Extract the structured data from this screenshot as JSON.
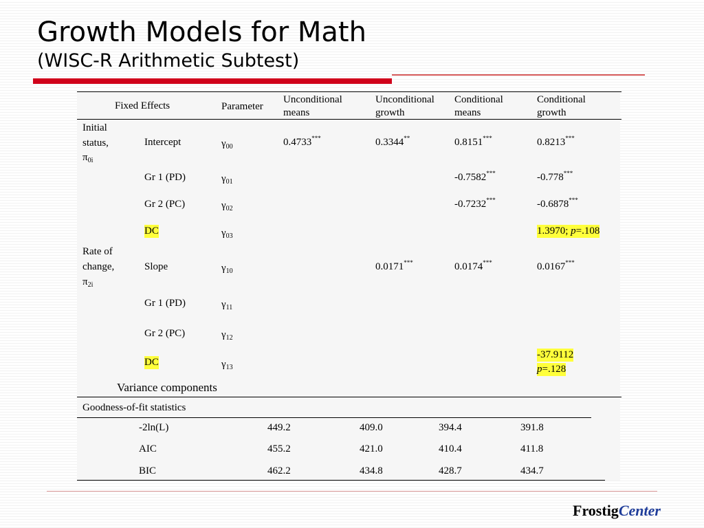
{
  "slide": {
    "title": "Growth Models for Math",
    "subtitle": "(WISC-R Arithmetic Subtest)",
    "brand_a": "Frostig",
    "brand_b": "Center",
    "accent_red": "#d0021b",
    "brand_blue": "#1f3d9a",
    "highlight_yellow": "#ffff3b"
  },
  "table": {
    "headers": {
      "fixed": "Fixed Effects",
      "param": "Parameter",
      "c1a": "Unconditional",
      "c1b": "means",
      "c2a": "Unconditional",
      "c2b": "growth",
      "c3a": "Conditional",
      "c3b": "means",
      "c4a": "Conditional",
      "c4b": "growth"
    },
    "groups": {
      "initial_a": "Initial",
      "initial_b": "status,",
      "initial_sym": "π",
      "initial_sub": "0i",
      "rate_a": "Rate of",
      "rate_b": "change,",
      "rate_sym": "π",
      "rate_sub": "2i"
    },
    "gamma": "γ",
    "rows": {
      "intercept": {
        "label": "Intercept",
        "sub": "00",
        "c1": "0.4733",
        "c1s": "***",
        "c2": "0.3344",
        "c2s": "**",
        "c3": "0.8151",
        "c3s": "***",
        "c4": "0.8213",
        "c4s": "***"
      },
      "gr1": {
        "label": "Gr 1 (PD)",
        "sub": "01",
        "c3": "-0.7582",
        "c3s": "***",
        "c4": "-0.778",
        "c4s": "***"
      },
      "gr2": {
        "label": "Gr 2 (PC)",
        "sub": "02",
        "c3": "-0.7232",
        "c3s": "***",
        "c4": "-0.6878",
        "c4s": "***"
      },
      "dc": {
        "label": "DC",
        "sub": "03",
        "c4a": "1.3970; ",
        "c4p": "p",
        "c4b": "=.108"
      },
      "slope": {
        "label": "Slope",
        "sub": "10",
        "c2": "0.0171",
        "c2s": "***",
        "c3": "0.0174",
        "c3s": "***",
        "c4": "0.0167",
        "c4s": "***"
      },
      "sgr1": {
        "label": "Gr 1 (PD)",
        "sub": "11"
      },
      "sgr2": {
        "label": "Gr 2 (PC)",
        "sub": "12"
      },
      "sdc": {
        "label": "DC",
        "sub": "13",
        "c4a": "-37.9112",
        "c4p": "p",
        "c4b": "=.128"
      }
    },
    "variance_label": "Variance components",
    "gof_label": "Goodness-of-fit statistics",
    "fit": [
      {
        "label": "-2ln(L)",
        "values": [
          "449.2",
          "409.0",
          "394.4",
          "391.8"
        ]
      },
      {
        "label": "AIC",
        "values": [
          "455.2",
          "421.0",
          "410.4",
          "411.8"
        ]
      },
      {
        "label": "BIC",
        "values": [
          "462.2",
          "434.8",
          "428.7",
          "434.7"
        ]
      }
    ]
  }
}
